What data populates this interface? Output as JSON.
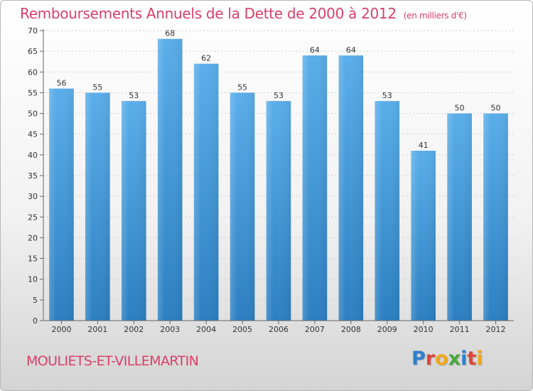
{
  "colors": {
    "title": "#d9406a",
    "bar_top": "#5aaeea",
    "bar_bottom": "#2c7fc1"
  },
  "logo": {
    "letters": [
      {
        "ch": "P",
        "color": "#2f7fd0"
      },
      {
        "ch": "r",
        "color": "#e0463a"
      },
      {
        "ch": "o",
        "color": "#f2a81d"
      },
      {
        "ch": "x",
        "color": "#47a83c"
      },
      {
        "ch": "i",
        "color": "#2f7fd0"
      },
      {
        "ch": "t",
        "color": "#e0463a"
      },
      {
        "ch": "i",
        "color": "#f2a81d"
      }
    ]
  },
  "chart_data": {
    "type": "bar",
    "title": "Remboursements Annuels de la Dette de 2000 à 2012",
    "subtitle": "(en milliers d'€)",
    "commune": "MOULIETS-ET-VILLEMARTIN",
    "categories": [
      "2000",
      "2001",
      "2002",
      "2003",
      "2004",
      "2005",
      "2006",
      "2007",
      "2008",
      "2009",
      "2010",
      "2011",
      "2012"
    ],
    "values": [
      56,
      55,
      53,
      68,
      62,
      55,
      53,
      64,
      64,
      53,
      41,
      50,
      50
    ],
    "ylim": [
      0,
      70
    ],
    "yticks": [
      0,
      5,
      10,
      15,
      20,
      25,
      30,
      35,
      40,
      45,
      50,
      55,
      60,
      65,
      70
    ],
    "grid": true
  }
}
